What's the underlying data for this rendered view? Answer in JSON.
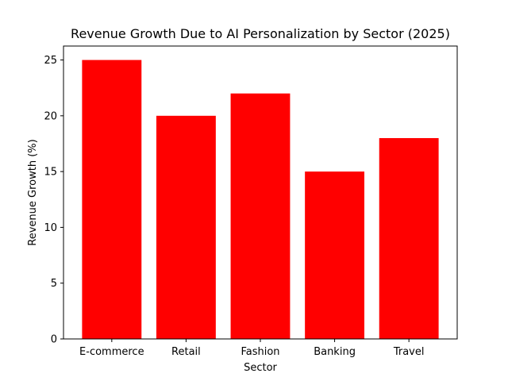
{
  "chart_data": {
    "type": "bar",
    "title": "Revenue Growth Due to AI Personalization by Sector (2025)",
    "xlabel": "Sector",
    "ylabel": "Revenue Growth (%)",
    "categories": [
      "E-commerce",
      "Retail",
      "Fashion",
      "Banking",
      "Travel"
    ],
    "values": [
      25,
      20,
      22,
      15,
      18
    ],
    "ylim": [
      0,
      26.25
    ],
    "yticks": [
      0,
      5,
      10,
      15,
      20,
      25
    ],
    "grid": false,
    "bar_color": "#ff0000"
  }
}
